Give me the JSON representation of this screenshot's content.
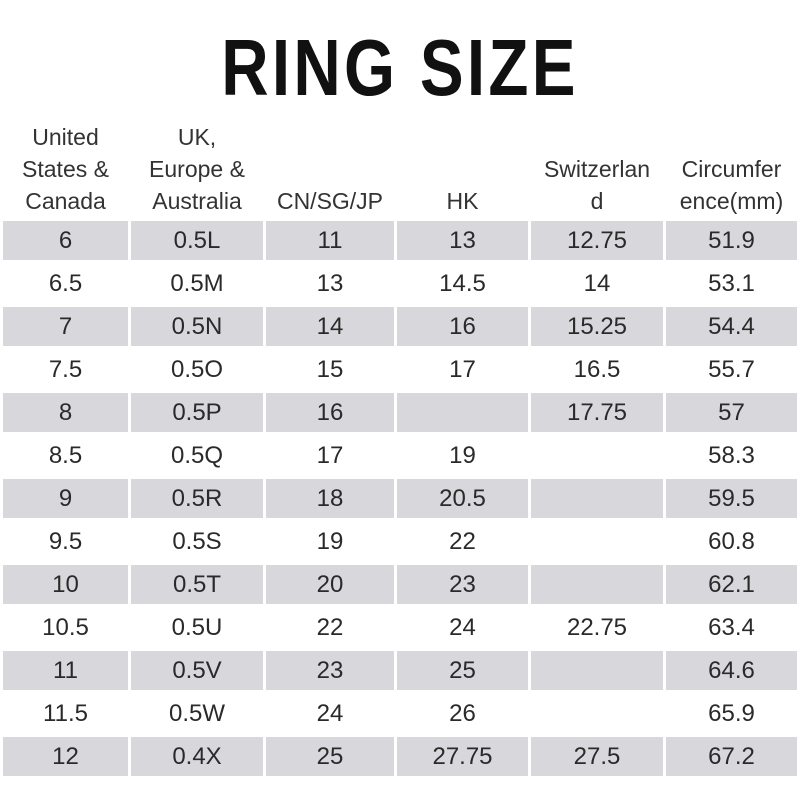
{
  "title": "RING SIZE",
  "headers": [
    "United\nStates &\nCanada",
    "UK,\nEurope &\nAustralia",
    "CN/SG/JP",
    "HK",
    "Switzerlan\nd",
    "Circumfer\nence(mm)"
  ],
  "rows": [
    [
      "6",
      "0.5L",
      "11",
      "13",
      "12.75",
      "51.9"
    ],
    [
      "6.5",
      "0.5M",
      "13",
      "14.5",
      "14",
      "53.1"
    ],
    [
      "7",
      "0.5N",
      "14",
      "16",
      "15.25",
      "54.4"
    ],
    [
      "7.5",
      "0.5O",
      "15",
      "17",
      "16.5",
      "55.7"
    ],
    [
      "8",
      "0.5P",
      "16",
      "",
      "17.75",
      "57"
    ],
    [
      "8.5",
      "0.5Q",
      "17",
      "19",
      "",
      "58.3"
    ],
    [
      "9",
      "0.5R",
      "18",
      "20.5",
      "",
      "59.5"
    ],
    [
      "9.5",
      "0.5S",
      "19",
      "22",
      "",
      "60.8"
    ],
    [
      "10",
      "0.5T",
      "20",
      "23",
      "",
      "62.1"
    ],
    [
      "10.5",
      "0.5U",
      "22",
      "24",
      "22.75",
      "63.4"
    ],
    [
      "11",
      "0.5V",
      "23",
      "25",
      "",
      "64.6"
    ],
    [
      "11.5",
      "0.5W",
      "24",
      "26",
      "",
      "65.9"
    ],
    [
      "12",
      "0.4X",
      "25",
      "27.75",
      "27.5",
      "67.2"
    ]
  ],
  "colors": {
    "shade": "#d8d8dc",
    "text": "#2a2a2a",
    "title": "#111111"
  }
}
